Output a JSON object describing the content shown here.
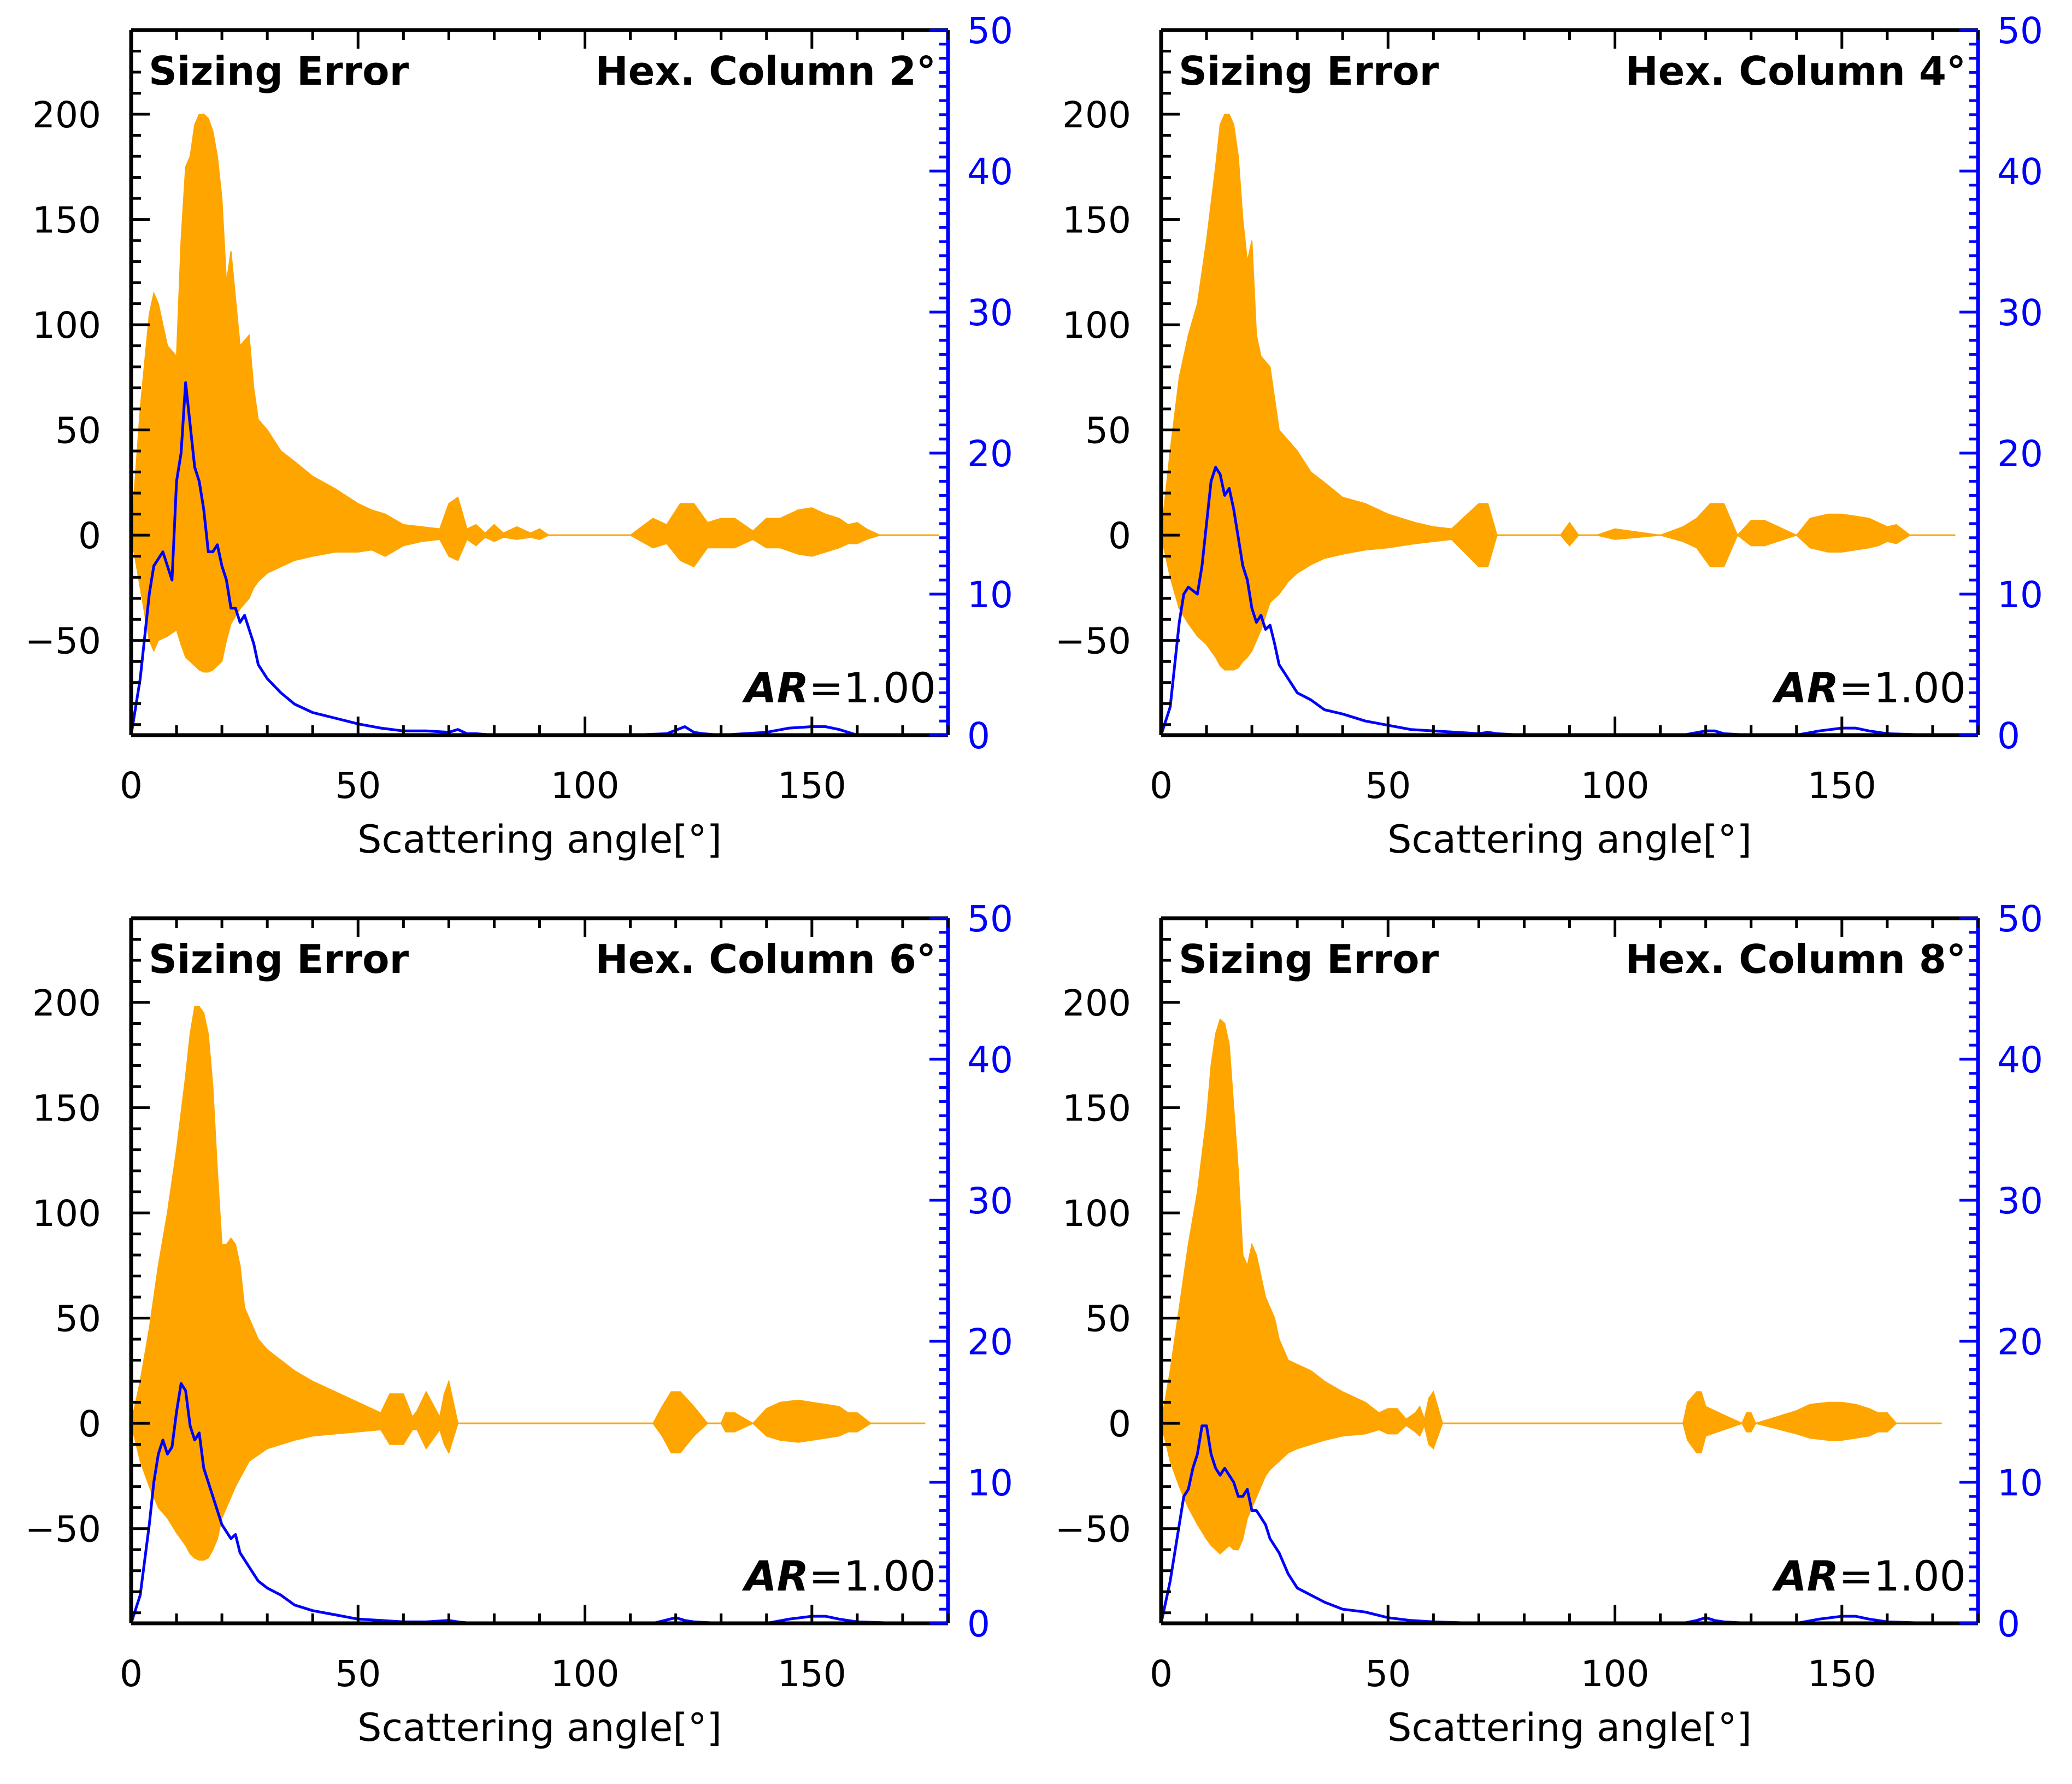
{
  "figure": {
    "title_left": "Sizing Error",
    "xlabel": "Scattering angle[°]",
    "annotation_prefix": "AR",
    "annotation_value": "=1.00"
  },
  "colors": {
    "fill": "#FFA500",
    "line": "#0000FF",
    "axis": "#000000",
    "right_axis": "#0000FF"
  },
  "chart_data": [
    {
      "type": "area",
      "title": "Hex. Column 2°",
      "xlabel": "Scattering angle[°]",
      "xlim": [
        0,
        180
      ],
      "ylim_left": [
        -95,
        240
      ],
      "ylim_right": [
        0,
        50
      ],
      "xticks": [
        0,
        50,
        100,
        150
      ],
      "yticks_left": [
        -50,
        0,
        50,
        100,
        150,
        200
      ],
      "yticks_right": [
        0,
        10,
        20,
        30,
        40,
        50
      ],
      "annotation": "AR=1.00",
      "envelope": {
        "x": [
          0,
          2,
          4,
          5,
          6,
          8,
          10,
          11,
          12,
          13,
          14,
          15,
          16,
          17,
          18,
          19,
          20,
          21,
          22,
          24,
          26,
          27,
          28,
          30,
          33,
          36,
          40,
          45,
          50,
          53,
          56,
          60,
          64,
          68,
          70,
          72,
          74,
          76,
          78,
          80,
          82,
          85,
          88,
          90,
          92,
          95,
          100,
          110,
          115,
          118,
          121,
          124,
          127,
          130,
          133,
          137,
          140,
          143,
          147,
          150,
          153,
          156,
          158,
          160,
          162,
          165,
          170,
          178
        ],
        "upper": [
          0,
          60,
          105,
          115,
          110,
          90,
          85,
          140,
          175,
          180,
          195,
          200,
          200,
          198,
          192,
          180,
          160,
          120,
          135,
          90,
          95,
          70,
          55,
          50,
          40,
          35,
          28,
          22,
          15,
          12,
          10,
          5,
          4,
          3,
          15,
          18,
          3,
          5,
          1,
          5,
          1,
          4,
          1,
          3,
          0,
          0,
          0,
          0,
          8,
          5,
          15,
          15,
          6,
          8,
          8,
          2,
          8,
          8,
          12,
          13,
          10,
          8,
          5,
          6,
          3,
          0,
          0,
          0
        ],
        "lower": [
          0,
          -25,
          -50,
          -55,
          -50,
          -48,
          -45,
          -52,
          -58,
          -60,
          -62,
          -64,
          -65,
          -65,
          -64,
          -62,
          -60,
          -50,
          -42,
          -35,
          -30,
          -25,
          -22,
          -18,
          -15,
          -12,
          -10,
          -8,
          -8,
          -7,
          -10,
          -5,
          -3,
          -2,
          -10,
          -12,
          -2,
          -5,
          -1,
          -3,
          -1,
          -2,
          -1,
          -2,
          0,
          0,
          0,
          0,
          -6,
          -4,
          -12,
          -15,
          -6,
          -6,
          -6,
          -2,
          -6,
          -6,
          -9,
          -10,
          -8,
          -6,
          -4,
          -4,
          -2,
          0,
          0,
          0
        ]
      },
      "line": {
        "x": [
          0,
          2,
          4,
          5,
          6,
          7,
          8,
          9,
          10,
          11,
          12,
          13,
          14,
          15,
          16,
          17,
          18,
          19,
          20,
          21,
          22,
          23,
          24,
          25,
          26,
          27,
          28,
          30,
          33,
          36,
          40,
          45,
          50,
          55,
          60,
          65,
          70,
          72,
          74,
          76,
          80,
          90,
          100,
          110,
          118,
          122,
          124,
          126,
          130,
          140,
          145,
          150,
          153,
          156,
          160,
          170,
          180
        ],
        "y": [
          0,
          4,
          10,
          12,
          12.5,
          13,
          12,
          11,
          18,
          20,
          25,
          22,
          19,
          18,
          16,
          13,
          13,
          13.5,
          12,
          11,
          9,
          9,
          8,
          8.5,
          7.5,
          6.5,
          5,
          4,
          3,
          2.2,
          1.6,
          1.2,
          0.8,
          0.5,
          0.3,
          0.3,
          0.2,
          0.4,
          0.1,
          0.1,
          0,
          0,
          0,
          0,
          0.1,
          0.6,
          0.2,
          0.1,
          0,
          0.2,
          0.5,
          0.6,
          0.6,
          0.4,
          0,
          0,
          0
        ]
      }
    },
    {
      "type": "area",
      "title": "Hex. Column 4°",
      "xlabel": "Scattering angle[°]",
      "xlim": [
        0,
        180
      ],
      "ylim_left": [
        -95,
        240
      ],
      "ylim_right": [
        0,
        50
      ],
      "xticks": [
        0,
        50,
        100,
        150
      ],
      "yticks_left": [
        -50,
        0,
        50,
        100,
        150,
        200
      ],
      "yticks_right": [
        0,
        10,
        20,
        30,
        40,
        50
      ],
      "annotation": "AR=1.00",
      "envelope": {
        "x": [
          0,
          2,
          4,
          6,
          8,
          10,
          12,
          13,
          14,
          15,
          16,
          17,
          18,
          19,
          20,
          21,
          22,
          24,
          26,
          28,
          30,
          33,
          36,
          40,
          45,
          50,
          53,
          56,
          60,
          64,
          70,
          72,
          74,
          78,
          88,
          90,
          92,
          96,
          100,
          110,
          115,
          118,
          121,
          124,
          127,
          130,
          133,
          140,
          143,
          147,
          150,
          153,
          156,
          158,
          160,
          162,
          165,
          175
        ],
        "upper": [
          0,
          40,
          75,
          95,
          110,
          140,
          175,
          195,
          200,
          200,
          195,
          180,
          150,
          130,
          140,
          95,
          85,
          80,
          50,
          45,
          40,
          30,
          25,
          18,
          15,
          10,
          8,
          6,
          4,
          3,
          15,
          15,
          0,
          0,
          0,
          6,
          0,
          0,
          3,
          0,
          4,
          8,
          15,
          15,
          0,
          7,
          7,
          0,
          8,
          10,
          10,
          9,
          8,
          6,
          4,
          5,
          0,
          0
        ],
        "lower": [
          0,
          -20,
          -35,
          -42,
          -48,
          -52,
          -58,
          -62,
          -64,
          -64,
          -64,
          -63,
          -60,
          -58,
          -55,
          -50,
          -45,
          -32,
          -28,
          -22,
          -18,
          -14,
          -11,
          -9,
          -7,
          -6,
          -5,
          -4,
          -3,
          -2,
          -15,
          -15,
          0,
          0,
          0,
          -5,
          0,
          0,
          -2,
          0,
          -3,
          -6,
          -15,
          -15,
          0,
          -5,
          -5,
          0,
          -6,
          -8,
          -8,
          -7,
          -6,
          -5,
          -3,
          -4,
          0,
          0
        ]
      },
      "line": {
        "x": [
          0,
          2,
          4,
          5,
          6,
          8,
          9,
          10,
          11,
          12,
          13,
          14,
          15,
          16,
          17,
          18,
          19,
          20,
          21,
          22,
          23,
          24,
          25,
          26,
          28,
          30,
          33,
          36,
          40,
          45,
          50,
          55,
          60,
          65,
          70,
          72,
          74,
          80,
          100,
          115,
          120,
          122,
          124,
          130,
          140,
          145,
          150,
          153,
          156,
          160,
          170,
          180
        ],
        "y": [
          0,
          2,
          8,
          10,
          10.5,
          10,
          12,
          15,
          18,
          19,
          18.5,
          17,
          17.5,
          16,
          14,
          12,
          11,
          9,
          8,
          8.5,
          7.5,
          7.8,
          6.5,
          5,
          4,
          3,
          2.5,
          1.8,
          1.5,
          1,
          0.7,
          0.4,
          0.3,
          0.2,
          0.1,
          0.2,
          0.1,
          0,
          0,
          0,
          0.3,
          0.3,
          0.1,
          0,
          0,
          0.3,
          0.5,
          0.5,
          0.3,
          0.1,
          0,
          0
        ]
      }
    },
    {
      "type": "area",
      "title": "Hex. Column 6°",
      "xlabel": "Scattering angle[°]",
      "xlim": [
        0,
        180
      ],
      "ylim_left": [
        -95,
        240
      ],
      "ylim_right": [
        0,
        50
      ],
      "xticks": [
        0,
        50,
        100,
        150
      ],
      "yticks_left": [
        -50,
        0,
        50,
        100,
        150,
        200
      ],
      "yticks_right": [
        0,
        10,
        20,
        30,
        40,
        50
      ],
      "annotation": "AR=1.00",
      "envelope": {
        "x": [
          0,
          2,
          4,
          6,
          8,
          10,
          12,
          13,
          14,
          15,
          16,
          17,
          18,
          19,
          20,
          21,
          22,
          23,
          24,
          25,
          26,
          28,
          30,
          33,
          36,
          40,
          45,
          50,
          55,
          57,
          60,
          62,
          63,
          65,
          68,
          69,
          70,
          72,
          75,
          100,
          115,
          117,
          119,
          121,
          124,
          127,
          130,
          131,
          133,
          137,
          140,
          143,
          147,
          150,
          153,
          156,
          158,
          160,
          163,
          175
        ],
        "upper": [
          0,
          20,
          45,
          75,
          100,
          130,
          165,
          185,
          198,
          198,
          195,
          185,
          160,
          120,
          85,
          85,
          88,
          85,
          75,
          55,
          50,
          40,
          35,
          30,
          25,
          20,
          15,
          10,
          5,
          14,
          14,
          3,
          6,
          15,
          3,
          14,
          20,
          0,
          0,
          0,
          0,
          8,
          15,
          15,
          8,
          0,
          0,
          5,
          5,
          0,
          7,
          10,
          11,
          10,
          9,
          8,
          5,
          5,
          0,
          0
        ],
        "lower": [
          0,
          -18,
          -30,
          -40,
          -45,
          -52,
          -58,
          -62,
          -64,
          -65,
          -65,
          -64,
          -60,
          -55,
          -45,
          -40,
          -35,
          -30,
          -26,
          -22,
          -18,
          -15,
          -12,
          -10,
          -8,
          -6,
          -5,
          -4,
          -3,
          -10,
          -10,
          -3,
          -3,
          -12,
          -3,
          -10,
          -14,
          0,
          0,
          0,
          0,
          -6,
          -14,
          -14,
          -6,
          0,
          0,
          -4,
          -4,
          0,
          -6,
          -8,
          -9,
          -8,
          -7,
          -6,
          -4,
          -4,
          0,
          0
        ]
      },
      "line": {
        "x": [
          0,
          2,
          4,
          5,
          6,
          7,
          8,
          9,
          10,
          11,
          12,
          13,
          14,
          15,
          16,
          17,
          18,
          19,
          20,
          21,
          22,
          23,
          24,
          25,
          26,
          28,
          30,
          33,
          36,
          40,
          45,
          50,
          55,
          60,
          65,
          70,
          72,
          75,
          100,
          115,
          120,
          122,
          124,
          130,
          140,
          145,
          150,
          153,
          156,
          160,
          170,
          180
        ],
        "y": [
          0,
          2,
          7,
          10,
          12,
          13,
          12,
          12.5,
          15,
          17,
          16.5,
          14,
          13,
          13.5,
          11,
          10,
          9,
          8,
          7,
          6.5,
          6,
          6.3,
          5,
          4.5,
          4,
          3,
          2.5,
          2,
          1.3,
          0.9,
          0.6,
          0.3,
          0.2,
          0.1,
          0.1,
          0.2,
          0.1,
          0,
          0,
          0,
          0.4,
          0.2,
          0.1,
          0,
          0,
          0.3,
          0.5,
          0.5,
          0.3,
          0.1,
          0,
          0
        ]
      }
    },
    {
      "type": "area",
      "title": "Hex. Column 8°",
      "xlabel": "Scattering angle[°]",
      "xlim": [
        0,
        180
      ],
      "ylim_left": [
        -95,
        240
      ],
      "ylim_right": [
        0,
        50
      ],
      "xticks": [
        0,
        50,
        100,
        150
      ],
      "yticks_left": [
        -50,
        0,
        50,
        100,
        150,
        200
      ],
      "yticks_right": [
        0,
        10,
        20,
        30,
        40,
        50
      ],
      "annotation": "AR=1.00",
      "envelope": {
        "x": [
          0,
          2,
          4,
          6,
          8,
          10,
          11,
          12,
          13,
          14,
          15,
          16,
          17,
          18,
          19,
          20,
          21,
          22,
          23,
          24,
          25,
          26,
          28,
          30,
          33,
          36,
          40,
          45,
          48,
          50,
          52,
          54,
          56,
          57,
          58,
          59,
          60,
          62,
          115,
          116,
          118,
          119,
          120,
          128,
          129,
          130,
          131,
          140,
          143,
          147,
          150,
          153,
          156,
          158,
          160,
          162,
          172
        ],
        "upper": [
          0,
          25,
          55,
          85,
          110,
          145,
          170,
          185,
          192,
          190,
          180,
          150,
          120,
          80,
          75,
          85,
          80,
          70,
          60,
          55,
          50,
          40,
          30,
          28,
          25,
          20,
          15,
          10,
          5,
          7,
          7,
          2,
          5,
          8,
          2,
          12,
          15,
          0,
          0,
          10,
          15,
          15,
          8,
          0,
          5,
          5,
          0,
          6,
          9,
          10,
          10,
          9,
          7,
          5,
          5,
          0,
          0
        ],
        "lower": [
          0,
          -18,
          -30,
          -40,
          -48,
          -55,
          -58,
          -60,
          -62,
          -60,
          -58,
          -60,
          -60,
          -55,
          -45,
          -40,
          -35,
          -30,
          -25,
          -22,
          -20,
          -18,
          -14,
          -12,
          -10,
          -8,
          -6,
          -5,
          -3,
          -5,
          -5,
          -1,
          -4,
          -6,
          -1,
          -10,
          -12,
          0,
          0,
          -8,
          -14,
          -14,
          -6,
          0,
          -4,
          -4,
          0,
          -5,
          -7,
          -8,
          -8,
          -7,
          -6,
          -4,
          -4,
          0,
          0
        ]
      },
      "line": {
        "x": [
          0,
          2,
          4,
          5,
          6,
          7,
          8,
          9,
          10,
          11,
          12,
          13,
          14,
          15,
          16,
          17,
          18,
          19,
          20,
          21,
          22,
          23,
          24,
          26,
          28,
          30,
          33,
          36,
          40,
          45,
          50,
          55,
          60,
          70,
          100,
          115,
          118,
          120,
          122,
          124,
          130,
          140,
          145,
          150,
          153,
          156,
          160,
          170,
          180
        ],
        "y": [
          0,
          3,
          7,
          9,
          9.5,
          11,
          12,
          14,
          14,
          12,
          11,
          10.5,
          11,
          10.5,
          10,
          9,
          9,
          9.5,
          8,
          8,
          7.5,
          7,
          6,
          5,
          3.5,
          2.5,
          2,
          1.5,
          1,
          0.8,
          0.4,
          0.2,
          0.1,
          0,
          0,
          0,
          0.2,
          0.4,
          0.2,
          0.1,
          0,
          0,
          0.3,
          0.5,
          0.5,
          0.3,
          0.1,
          0,
          0
        ]
      }
    }
  ]
}
